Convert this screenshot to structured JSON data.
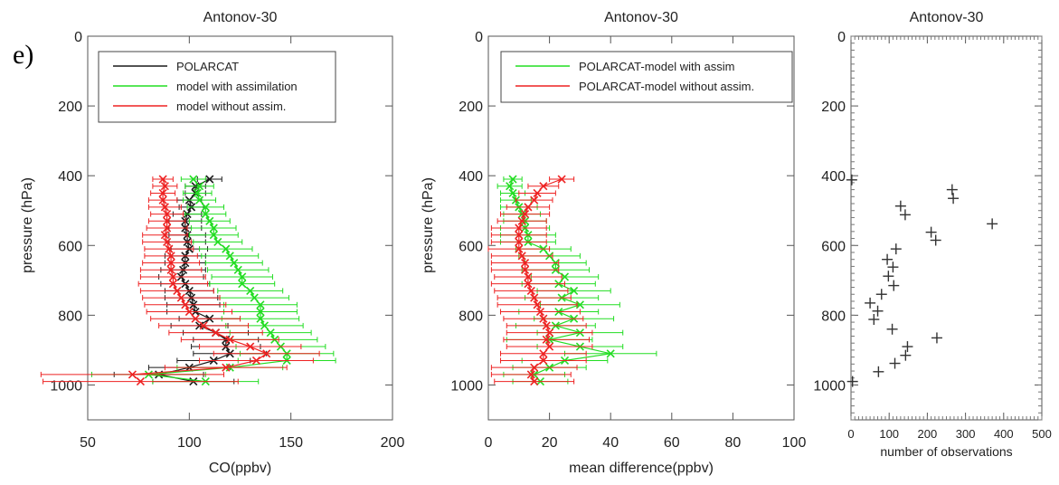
{
  "figure": {
    "panel_label": "e)"
  },
  "chart_data": [
    {
      "type": "scatter",
      "title": "Antonov-30",
      "xlabel": "CO(ppbv)",
      "ylabel": "pressure (hPa)",
      "xlim": [
        50,
        200
      ],
      "ylim": [
        1100,
        0
      ],
      "xticks": [
        "50",
        "100",
        "150",
        "200"
      ],
      "yticks": [
        "0",
        "200",
        "400",
        "600",
        "800",
        "1000"
      ],
      "y_inverted": true,
      "legend_position": "top-left",
      "legend": [
        "POLARCAT",
        "model with assimilation",
        "model without assim."
      ],
      "colors": {
        "POLARCAT": "#1a1a1a",
        "model with assimilation": "#22dd22",
        "model without assim.": "#ee2222"
      },
      "pressure": [
        410,
        430,
        450,
        470,
        490,
        510,
        530,
        550,
        570,
        590,
        610,
        630,
        650,
        670,
        690,
        710,
        730,
        750,
        770,
        790,
        810,
        830,
        850,
        870,
        890,
        910,
        930,
        950,
        970,
        990
      ],
      "series": [
        {
          "name": "POLARCAT",
          "values": [
            110,
            103,
            103,
            100,
            101,
            99,
            98,
            98,
            99,
            99,
            100,
            98,
            98,
            97,
            96,
            98,
            100,
            101,
            102,
            103,
            110,
            105,
            113,
            118,
            118,
            120,
            112,
            100,
            85,
            102
          ],
          "error": [
            6,
            5,
            5,
            6,
            6,
            7,
            8,
            8,
            9,
            9,
            9,
            10,
            10,
            11,
            11,
            12,
            12,
            13,
            13,
            14,
            15,
            14,
            16,
            16,
            17,
            18,
            18,
            20,
            22,
            20
          ]
        },
        {
          "name": "model with assimilation",
          "values": [
            102,
            105,
            104,
            105,
            108,
            108,
            110,
            112,
            112,
            114,
            118,
            120,
            122,
            124,
            126,
            126,
            130,
            132,
            135,
            135,
            135,
            137,
            140,
            142,
            145,
            148,
            148,
            120,
            80,
            108
          ],
          "error": [
            6,
            7,
            7,
            8,
            9,
            10,
            10,
            11,
            12,
            12,
            13,
            14,
            14,
            15,
            15,
            16,
            16,
            17,
            18,
            18,
            19,
            19,
            20,
            21,
            22,
            23,
            24,
            26,
            28,
            26
          ]
        },
        {
          "name": "model without assim.",
          "values": [
            87,
            88,
            87,
            87,
            88,
            89,
            89,
            89,
            88,
            89,
            90,
            91,
            91,
            91,
            92,
            92,
            94,
            96,
            98,
            100,
            103,
            107,
            113,
            120,
            130,
            138,
            133,
            118,
            72,
            76
          ],
          "error": [
            5,
            6,
            6,
            7,
            8,
            8,
            9,
            10,
            11,
            12,
            12,
            13,
            14,
            15,
            16,
            17,
            18,
            19,
            20,
            21,
            22,
            22,
            23,
            24,
            25,
            26,
            28,
            30,
            45,
            48
          ]
        }
      ]
    },
    {
      "type": "scatter",
      "title": "Antonov-30",
      "xlabel": "mean difference(ppbv)",
      "ylabel": "pressure (hPa)",
      "xlim": [
        0,
        100
      ],
      "ylim": [
        1100,
        0
      ],
      "xticks": [
        "0",
        "20",
        "40",
        "60",
        "80",
        "100"
      ],
      "yticks": [
        "0",
        "200",
        "400",
        "600",
        "800",
        "1000"
      ],
      "y_inverted": true,
      "legend_position": "top",
      "legend": [
        "POLARCAT-model with assim",
        "POLARCAT-model without assim."
      ],
      "colors": {
        "POLARCAT-model with assim": "#22dd22",
        "POLARCAT-model without assim.": "#ee2222"
      },
      "pressure": [
        410,
        430,
        450,
        470,
        490,
        510,
        530,
        550,
        570,
        590,
        610,
        630,
        650,
        670,
        690,
        710,
        730,
        750,
        770,
        790,
        810,
        830,
        850,
        870,
        890,
        910,
        930,
        950,
        970,
        990
      ],
      "series": [
        {
          "name": "POLARCAT-model with assim",
          "values": [
            8,
            7,
            8,
            9,
            10,
            11,
            12,
            12,
            13,
            13,
            18,
            20,
            22,
            22,
            25,
            23,
            28,
            24,
            30,
            23,
            28,
            22,
            30,
            20,
            30,
            40,
            25,
            20,
            15,
            17
          ],
          "error": [
            3,
            4,
            4,
            5,
            6,
            6,
            7,
            8,
            9,
            9,
            9,
            10,
            10,
            11,
            11,
            12,
            12,
            12,
            13,
            13,
            13,
            13,
            14,
            14,
            14,
            15,
            14,
            12,
            10,
            9
          ]
        },
        {
          "name": "POLARCAT-model without assim.",
          "values": [
            24,
            18,
            16,
            15,
            13,
            12,
            11,
            10,
            10,
            10,
            10,
            11,
            12,
            12,
            13,
            13,
            14,
            15,
            16,
            17,
            18,
            19,
            20,
            19,
            20,
            18,
            18,
            15,
            14,
            15
          ],
          "error": [
            4,
            5,
            6,
            6,
            7,
            8,
            8,
            9,
            9,
            9,
            10,
            10,
            11,
            11,
            11,
            12,
            12,
            12,
            13,
            13,
            13,
            13,
            14,
            14,
            14,
            14,
            14,
            14,
            13,
            13
          ]
        }
      ]
    },
    {
      "type": "scatter",
      "title": "Antonov-30",
      "xlabel": "number of observations",
      "ylabel": "",
      "xlim": [
        0,
        500
      ],
      "ylim": [
        1100,
        0
      ],
      "xticks": [
        "0",
        "100",
        "200",
        "300",
        "400",
        "500"
      ],
      "yticks": [
        "0",
        "200",
        "400",
        "600",
        "800",
        "1000"
      ],
      "y_inverted": true,
      "series": [
        {
          "name": "",
          "points": [
            [
              2,
              412
            ],
            [
              265,
              440
            ],
            [
              268,
              465
            ],
            [
              130,
              487
            ],
            [
              142,
              512
            ],
            [
              370,
              538
            ],
            [
              210,
              562
            ],
            [
              222,
              585
            ],
            [
              118,
              610
            ],
            [
              95,
              640
            ],
            [
              110,
              662
            ],
            [
              98,
              688
            ],
            [
              112,
              715
            ],
            [
              80,
              740
            ],
            [
              50,
              765
            ],
            [
              70,
              788
            ],
            [
              60,
              812
            ],
            [
              108,
              840
            ],
            [
              225,
              865
            ],
            [
              148,
              890
            ],
            [
              143,
              915
            ],
            [
              115,
              938
            ],
            [
              72,
              962
            ],
            [
              4,
              990
            ]
          ]
        }
      ]
    }
  ]
}
